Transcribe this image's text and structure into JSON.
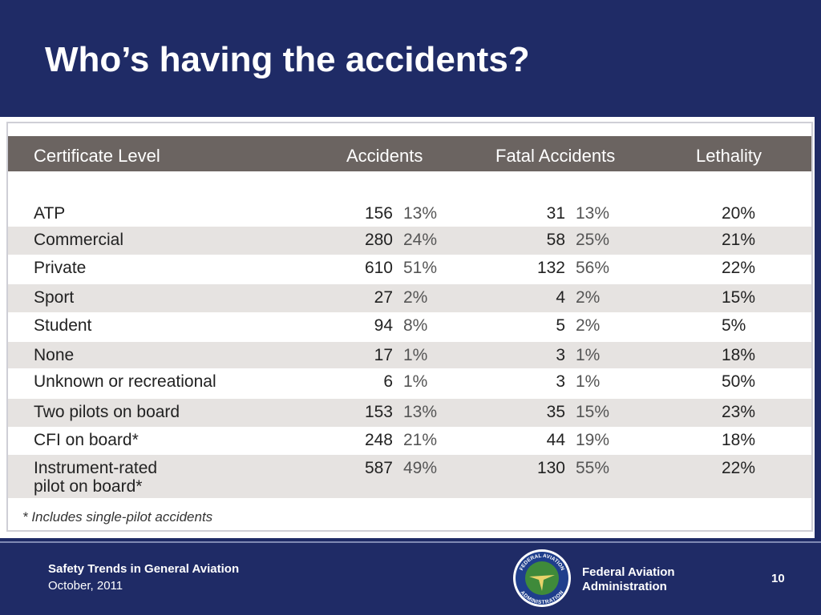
{
  "header": {
    "title": "Who’s having the accidents?"
  },
  "table": {
    "columns": [
      "Certificate Level",
      "Accidents",
      "Fatal Accidents",
      "Lethality"
    ],
    "rows": [
      [
        "ATP",
        156,
        "13%",
        31,
        "13%",
        "20%"
      ],
      [
        "Commercial",
        280,
        "24%",
        58,
        "25%",
        "21%"
      ],
      [
        "Private",
        610,
        "51%",
        132,
        "56%",
        "22%"
      ],
      [
        "Sport",
        27,
        "2%",
        4,
        "2%",
        "15%"
      ],
      [
        "Student",
        94,
        "8%",
        5,
        "2%",
        "5%"
      ],
      [
        "None",
        17,
        "1%",
        3,
        "1%",
        "18%"
      ],
      [
        "Unknown or recreational",
        6,
        "1%",
        3,
        "1%",
        "50%"
      ],
      [
        "Two pilots on board",
        153,
        "13%",
        35,
        "15%",
        "23%"
      ],
      [
        "CFI on board*",
        248,
        "21%",
        44,
        "19%",
        "18%"
      ],
      [
        "Instrument-rated\npilot on board*",
        587,
        "49%",
        130,
        "55%",
        "22%"
      ]
    ],
    "footnote": "* Includes single-pilot accidents"
  },
  "footer": {
    "presentation": "Safety Trends in General Aviation",
    "date": "October, 2011",
    "agency": "Federal Aviation\nAdministration",
    "page": 10,
    "logo": {
      "top": "FEDERAL AVIATION",
      "bottom": "ADMINISTRATION"
    }
  }
}
